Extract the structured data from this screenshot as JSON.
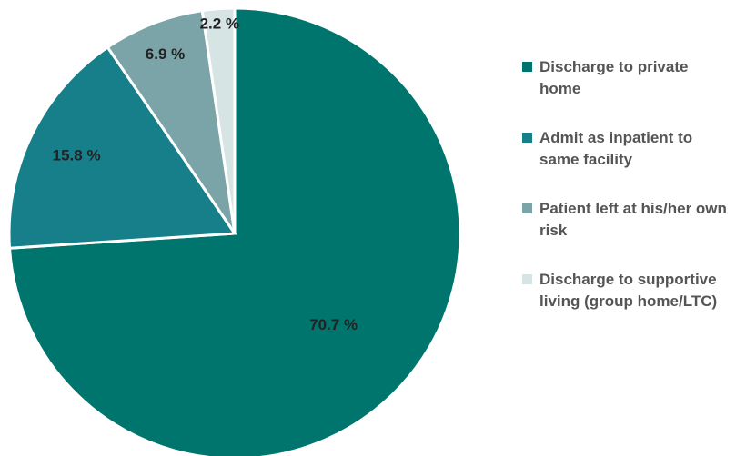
{
  "chart_data": {
    "type": "pie",
    "categories": [
      "Discharge to private home",
      "Admit as inpatient to same facility",
      "Patient left at his/her own risk",
      "Discharge to supportive living (group home/LTC)"
    ],
    "values": [
      70.7,
      15.8,
      6.9,
      2.2
    ],
    "value_labels": [
      "70.7 %",
      "15.8 %",
      "6.9 %",
      "2.2 %"
    ],
    "colors": [
      "#00756e",
      "#167f89",
      "#7aa4a7",
      "#d6e4e4"
    ],
    "legend": "right"
  }
}
